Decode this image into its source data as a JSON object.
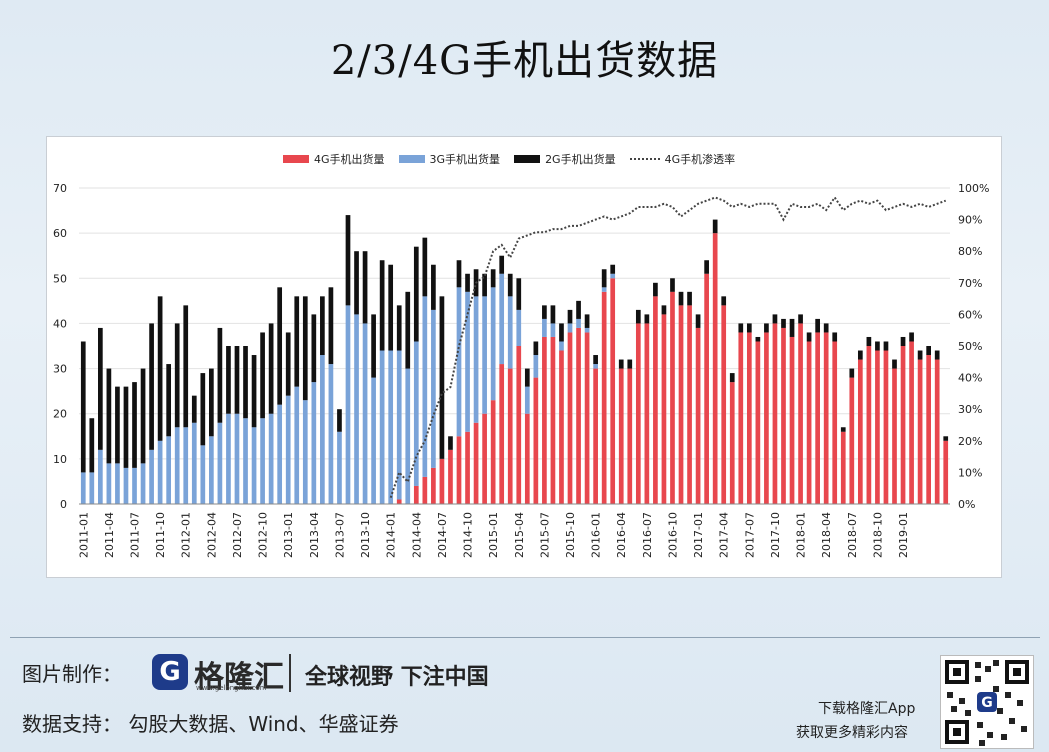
{
  "title": "2/3/4G手机出货数据",
  "legend": {
    "g4": "4G手机出货量",
    "g3": "3G手机出货量",
    "g2": "2G手机出货量",
    "pen": "4G手机渗透率"
  },
  "footer": {
    "maker_label": "图片制作：",
    "logo_icon": "G",
    "logo_name": "格隆汇",
    "logo_url": "www.gelonghui.com",
    "slogan": "全球视野 下注中国",
    "source": "数据支持：  勾股大数据、Wind、华盛证券",
    "download": "下载格隆汇App",
    "more": "获取更多精彩内容"
  },
  "colors": {
    "g4": "#e8474e",
    "g3": "#7aa3d8",
    "g2": "#111111",
    "pen": "#444444"
  },
  "chart_data": {
    "type": "bar",
    "stacked": true,
    "title": "",
    "x_start": "2011-01",
    "tick_labels": [
      "2011-01",
      "2011-04",
      "2011-07",
      "2011-10",
      "2012-01",
      "2012-04",
      "2012-07",
      "2012-10",
      "2013-01",
      "2013-04",
      "2013-07",
      "2013-10",
      "2014-01",
      "2014-04",
      "2014-07",
      "2014-10",
      "2015-01",
      "2015-04",
      "2015-07",
      "2015-10",
      "2016-01",
      "2016-04",
      "2016-07",
      "2016-10",
      "2017-01",
      "2017-04",
      "2017-07",
      "2017-10",
      "2018-01",
      "2018-04",
      "2018-07",
      "2018-10",
      "2019-01"
    ],
    "y_left": {
      "min": 0,
      "max": 70,
      "ticks": [
        0,
        10,
        20,
        30,
        40,
        50,
        60,
        70
      ]
    },
    "y_right": {
      "min": 0,
      "max": 1.0,
      "ticks": [
        "0%",
        "10%",
        "20%",
        "30%",
        "40%",
        "50%",
        "60%",
        "70%",
        "80%",
        "90%",
        "100%"
      ]
    },
    "grid": true,
    "legend_position": "top",
    "series": [
      {
        "name": "4G手机出货量",
        "axis": "left",
        "values": [
          0,
          0,
          0,
          0,
          0,
          0,
          0,
          0,
          0,
          0,
          0,
          0,
          0,
          0,
          0,
          0,
          0,
          0,
          0,
          0,
          0,
          0,
          0,
          0,
          0,
          0,
          0,
          0,
          0,
          0,
          0,
          0,
          0,
          0,
          0,
          0,
          0,
          1,
          0,
          4,
          6,
          8,
          10,
          12,
          15,
          16,
          18,
          20,
          23,
          31,
          30,
          35,
          20,
          28,
          37,
          37,
          34,
          38,
          39,
          38,
          30,
          47,
          50,
          30,
          30,
          40,
          40,
          46,
          42,
          47,
          44,
          44,
          39,
          51,
          60,
          44,
          27,
          38,
          38,
          36,
          38,
          40,
          39,
          37,
          40,
          36,
          38,
          38,
          36,
          16,
          28,
          32,
          35,
          34,
          34,
          30,
          35,
          36,
          32,
          33,
          32,
          14
        ]
      },
      {
        "name": "3G手机出货量",
        "axis": "left",
        "values": [
          7,
          7,
          12,
          9,
          9,
          8,
          8,
          9,
          12,
          14,
          15,
          17,
          17,
          18,
          13,
          15,
          18,
          20,
          20,
          19,
          17,
          19,
          20,
          22,
          24,
          26,
          23,
          27,
          33,
          31,
          16,
          44,
          42,
          40,
          28,
          34,
          34,
          33,
          30,
          32,
          40,
          35,
          0,
          0,
          33,
          31,
          28,
          26,
          25,
          20,
          16,
          8,
          6,
          5,
          4,
          3,
          2,
          2,
          2,
          1,
          1,
          1,
          1,
          0,
          0,
          0,
          0,
          0,
          0,
          0,
          0,
          0,
          0,
          0,
          0,
          0,
          0,
          0,
          0,
          0,
          0,
          0,
          0,
          0,
          0,
          0,
          0,
          0,
          0,
          0,
          0,
          0,
          0,
          0,
          0,
          0,
          0,
          0,
          0,
          0,
          0,
          0
        ]
      },
      {
        "name": "2G手机出货量",
        "axis": "left",
        "values": [
          29,
          12,
          27,
          21,
          17,
          18,
          19,
          21,
          28,
          32,
          16,
          23,
          27,
          6,
          16,
          15,
          21,
          15,
          15,
          16,
          16,
          19,
          20,
          26,
          14,
          20,
          23,
          15,
          13,
          17,
          5,
          20,
          14,
          16,
          14,
          20,
          19,
          10,
          17,
          21,
          13,
          10,
          36,
          3,
          6,
          4,
          6,
          5,
          4,
          4,
          5,
          7,
          4,
          3,
          3,
          4,
          4,
          3,
          4,
          3,
          2,
          4,
          2,
          2,
          2,
          3,
          2,
          3,
          2,
          3,
          3,
          3,
          3,
          3,
          3,
          2,
          2,
          2,
          2,
          1,
          2,
          2,
          2,
          4,
          2,
          2,
          3,
          2,
          2,
          1,
          2,
          2,
          2,
          2,
          2,
          2,
          2,
          2,
          2,
          2,
          2,
          1
        ]
      },
      {
        "name": "4G手机渗透率",
        "axis": "right",
        "kind": "line",
        "values": [
          null,
          null,
          null,
          null,
          null,
          null,
          null,
          null,
          null,
          null,
          null,
          null,
          null,
          null,
          null,
          null,
          null,
          null,
          null,
          null,
          null,
          null,
          null,
          null,
          null,
          null,
          null,
          null,
          null,
          null,
          null,
          null,
          null,
          null,
          null,
          null,
          0.02,
          0.1,
          0.07,
          0.15,
          0.2,
          0.28,
          0.35,
          0.37,
          0.5,
          0.6,
          0.7,
          0.72,
          0.8,
          0.82,
          0.78,
          0.84,
          0.85,
          0.86,
          0.86,
          0.87,
          0.87,
          0.88,
          0.88,
          0.89,
          0.9,
          0.91,
          0.9,
          0.91,
          0.92,
          0.94,
          0.94,
          0.94,
          0.95,
          0.94,
          0.91,
          0.93,
          0.95,
          0.96,
          0.97,
          0.96,
          0.94,
          0.95,
          0.94,
          0.95,
          0.95,
          0.95,
          0.9,
          0.95,
          0.94,
          0.94,
          0.95,
          0.93,
          0.97,
          0.93,
          0.95,
          0.96,
          0.95,
          0.96,
          0.93,
          0.94,
          0.95,
          0.94,
          0.95,
          0.94,
          0.95,
          0.96
        ]
      }
    ]
  }
}
